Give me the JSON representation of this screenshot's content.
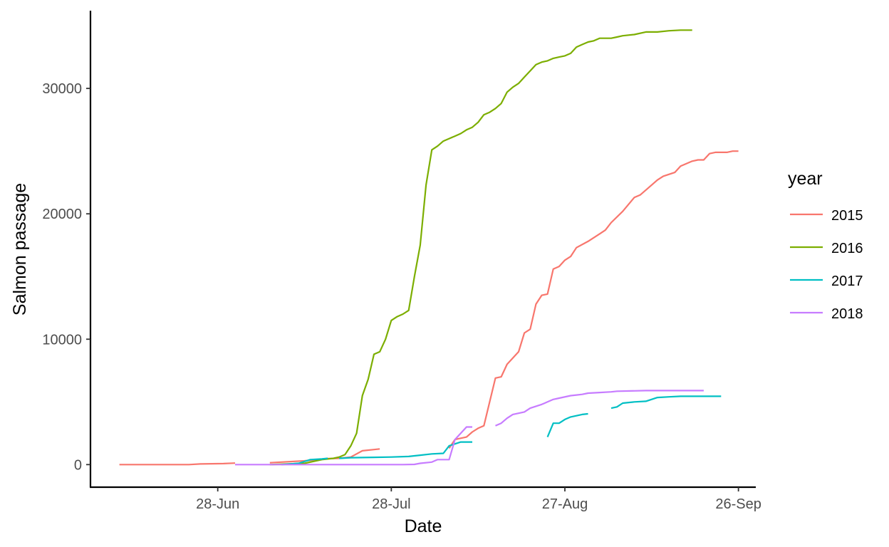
{
  "chart_data": {
    "type": "line",
    "xlabel": "Date",
    "ylabel": "Salmon passage",
    "legend_title": "year",
    "legend_position": "right",
    "grid": false,
    "x_ticks": [
      "28-Jun",
      "28-Jul",
      "27-Aug",
      "26-Sep"
    ],
    "x_tick_dates": [
      "06-28",
      "07-28",
      "08-27",
      "09-26"
    ],
    "xlim": [
      "06-06",
      "09-29"
    ],
    "y_ticks": [
      0,
      10000,
      20000,
      30000
    ],
    "y_tick_labels": [
      "0",
      "10000",
      "20000",
      "30000"
    ],
    "ylim": [
      -1800,
      36200
    ],
    "series": [
      {
        "name": "2015",
        "color": "#F8766D",
        "segments": [
          [
            [
              "06-11",
              0
            ],
            [
              "06-17",
              0
            ],
            [
              "06-23",
              0
            ],
            [
              "06-25",
              50
            ],
            [
              "06-29",
              80
            ],
            [
              "07-01",
              120
            ]
          ],
          [
            [
              "07-07",
              150
            ],
            [
              "07-13",
              300
            ],
            [
              "07-17",
              480
            ],
            [
              "07-19",
              500
            ],
            [
              "07-21",
              600
            ],
            [
              "07-23",
              1100
            ],
            [
              "07-25",
              1200
            ],
            [
              "07-26",
              1250
            ]
          ],
          [
            [
              "08-07",
              1300
            ],
            [
              "08-08",
              2000
            ],
            [
              "08-09",
              2100
            ],
            [
              "08-10",
              2200
            ],
            [
              "08-11",
              2600
            ],
            [
              "08-12",
              2900
            ],
            [
              "08-13",
              3100
            ],
            [
              "08-14",
              5000
            ],
            [
              "08-15",
              6900
            ],
            [
              "08-16",
              7000
            ],
            [
              "08-17",
              8000
            ],
            [
              "08-19",
              9000
            ],
            [
              "08-20",
              10500
            ],
            [
              "08-21",
              10800
            ],
            [
              "08-22",
              12800
            ],
            [
              "08-23",
              13500
            ],
            [
              "08-24",
              13600
            ],
            [
              "08-25",
              15600
            ],
            [
              "08-26",
              15800
            ],
            [
              "08-27",
              16300
            ],
            [
              "08-28",
              16600
            ],
            [
              "08-29",
              17300
            ],
            [
              "08-31",
              17800
            ],
            [
              "09-02",
              18400
            ],
            [
              "09-03",
              18700
            ],
            [
              "09-04",
              19300
            ],
            [
              "09-06",
              20200
            ],
            [
              "09-08",
              21300
            ],
            [
              "09-09",
              21500
            ],
            [
              "09-10",
              21900
            ],
            [
              "09-12",
              22700
            ],
            [
              "09-13",
              23000
            ],
            [
              "09-15",
              23300
            ],
            [
              "09-16",
              23800
            ],
            [
              "09-18",
              24200
            ],
            [
              "09-19",
              24300
            ],
            [
              "09-20",
              24300
            ],
            [
              "09-21",
              24800
            ],
            [
              "09-22",
              24900
            ],
            [
              "09-24",
              24900
            ],
            [
              "09-25",
              25000
            ],
            [
              "09-26",
              25000
            ]
          ]
        ]
      },
      {
        "name": "2016",
        "color": "#7CAE00",
        "segments": [
          [
            [
              "07-07",
              0
            ],
            [
              "07-13",
              100
            ],
            [
              "07-16",
              400
            ],
            [
              "07-18",
              500
            ],
            [
              "07-19",
              600
            ],
            [
              "07-20",
              800
            ],
            [
              "07-21",
              1500
            ],
            [
              "07-22",
              2500
            ],
            [
              "07-23",
              5500
            ],
            [
              "07-24",
              6800
            ],
            [
              "07-25",
              8800
            ],
            [
              "07-26",
              9000
            ],
            [
              "07-27",
              10000
            ],
            [
              "07-28",
              11500
            ],
            [
              "07-29",
              11800
            ],
            [
              "07-30",
              12000
            ],
            [
              "07-31",
              12300
            ],
            [
              "08-01",
              15000
            ],
            [
              "08-02",
              17500
            ],
            [
              "08-03",
              22300
            ],
            [
              "08-04",
              25100
            ],
            [
              "08-05",
              25400
            ],
            [
              "08-06",
              25800
            ],
            [
              "08-07",
              26000
            ],
            [
              "08-08",
              26200
            ],
            [
              "08-09",
              26400
            ],
            [
              "08-10",
              26700
            ],
            [
              "08-11",
              26900
            ],
            [
              "08-12",
              27300
            ],
            [
              "08-13",
              27900
            ],
            [
              "08-14",
              28100
            ],
            [
              "08-15",
              28400
            ],
            [
              "08-16",
              28800
            ],
            [
              "08-17",
              29700
            ],
            [
              "08-18",
              30100
            ],
            [
              "08-19",
              30400
            ],
            [
              "08-20",
              30900
            ],
            [
              "08-21",
              31400
            ],
            [
              "08-22",
              31900
            ],
            [
              "08-23",
              32100
            ],
            [
              "08-24",
              32200
            ],
            [
              "08-25",
              32400
            ],
            [
              "08-26",
              32500
            ],
            [
              "08-27",
              32600
            ],
            [
              "08-28",
              32800
            ],
            [
              "08-29",
              33300
            ],
            [
              "08-30",
              33500
            ],
            [
              "08-31",
              33700
            ],
            [
              "09-01",
              33800
            ],
            [
              "09-02",
              34000
            ],
            [
              "09-04",
              34000
            ],
            [
              "09-05",
              34100
            ],
            [
              "09-06",
              34200
            ],
            [
              "09-08",
              34300
            ],
            [
              "09-10",
              34500
            ],
            [
              "09-12",
              34500
            ],
            [
              "09-14",
              34600
            ],
            [
              "09-16",
              34650
            ],
            [
              "09-18",
              34650
            ]
          ]
        ]
      },
      {
        "name": "2017",
        "color": "#00BFC4",
        "segments": [
          [
            [
              "07-09",
              0
            ],
            [
              "07-12",
              100
            ],
            [
              "07-14",
              400
            ],
            [
              "07-16",
              450
            ],
            [
              "07-17",
              500
            ]
          ],
          [
            [
              "07-19",
              500
            ],
            [
              "07-21",
              550
            ],
            [
              "07-25",
              580
            ],
            [
              "07-28",
              600
            ],
            [
              "07-31",
              650
            ],
            [
              "08-02",
              750
            ],
            [
              "08-04",
              850
            ],
            [
              "08-06",
              900
            ],
            [
              "08-07",
              1500
            ],
            [
              "08-09",
              1800
            ],
            [
              "08-11",
              1800
            ]
          ],
          [
            [
              "08-24",
              2200
            ],
            [
              "08-25",
              3300
            ],
            [
              "08-26",
              3300
            ],
            [
              "08-27",
              3600
            ],
            [
              "08-28",
              3800
            ],
            [
              "08-30",
              4000
            ],
            [
              "08-31",
              4050
            ]
          ],
          [
            [
              "09-04",
              4500
            ],
            [
              "09-05",
              4600
            ],
            [
              "09-06",
              4900
            ],
            [
              "09-08",
              5000
            ],
            [
              "09-10",
              5050
            ],
            [
              "09-12",
              5350
            ],
            [
              "09-14",
              5400
            ],
            [
              "09-16",
              5450
            ],
            [
              "09-20",
              5450
            ],
            [
              "09-23",
              5450
            ]
          ]
        ]
      },
      {
        "name": "2018",
        "color": "#C77CFF",
        "segments": [
          [
            [
              "07-01",
              0
            ],
            [
              "07-10",
              0
            ],
            [
              "07-20",
              0
            ],
            [
              "07-30",
              0
            ],
            [
              "08-01",
              20
            ],
            [
              "08-02",
              100
            ],
            [
              "08-04",
              200
            ],
            [
              "08-05",
              400
            ],
            [
              "08-07",
              400
            ],
            [
              "08-08",
              2000
            ],
            [
              "08-10",
              3000
            ],
            [
              "08-11",
              3000
            ]
          ],
          [
            [
              "08-15",
              3100
            ],
            [
              "08-16",
              3300
            ],
            [
              "08-17",
              3700
            ],
            [
              "08-18",
              4000
            ],
            [
              "08-20",
              4200
            ],
            [
              "08-21",
              4500
            ],
            [
              "08-23",
              4800
            ],
            [
              "08-24",
              5000
            ],
            [
              "08-25",
              5200
            ],
            [
              "08-26",
              5300
            ],
            [
              "08-28",
              5500
            ],
            [
              "08-29",
              5550
            ],
            [
              "08-30",
              5600
            ],
            [
              "08-31",
              5700
            ],
            [
              "09-02",
              5750
            ],
            [
              "09-04",
              5800
            ],
            [
              "09-05",
              5850
            ],
            [
              "09-10",
              5900
            ],
            [
              "09-15",
              5900
            ],
            [
              "09-20",
              5900
            ]
          ]
        ]
      }
    ]
  }
}
